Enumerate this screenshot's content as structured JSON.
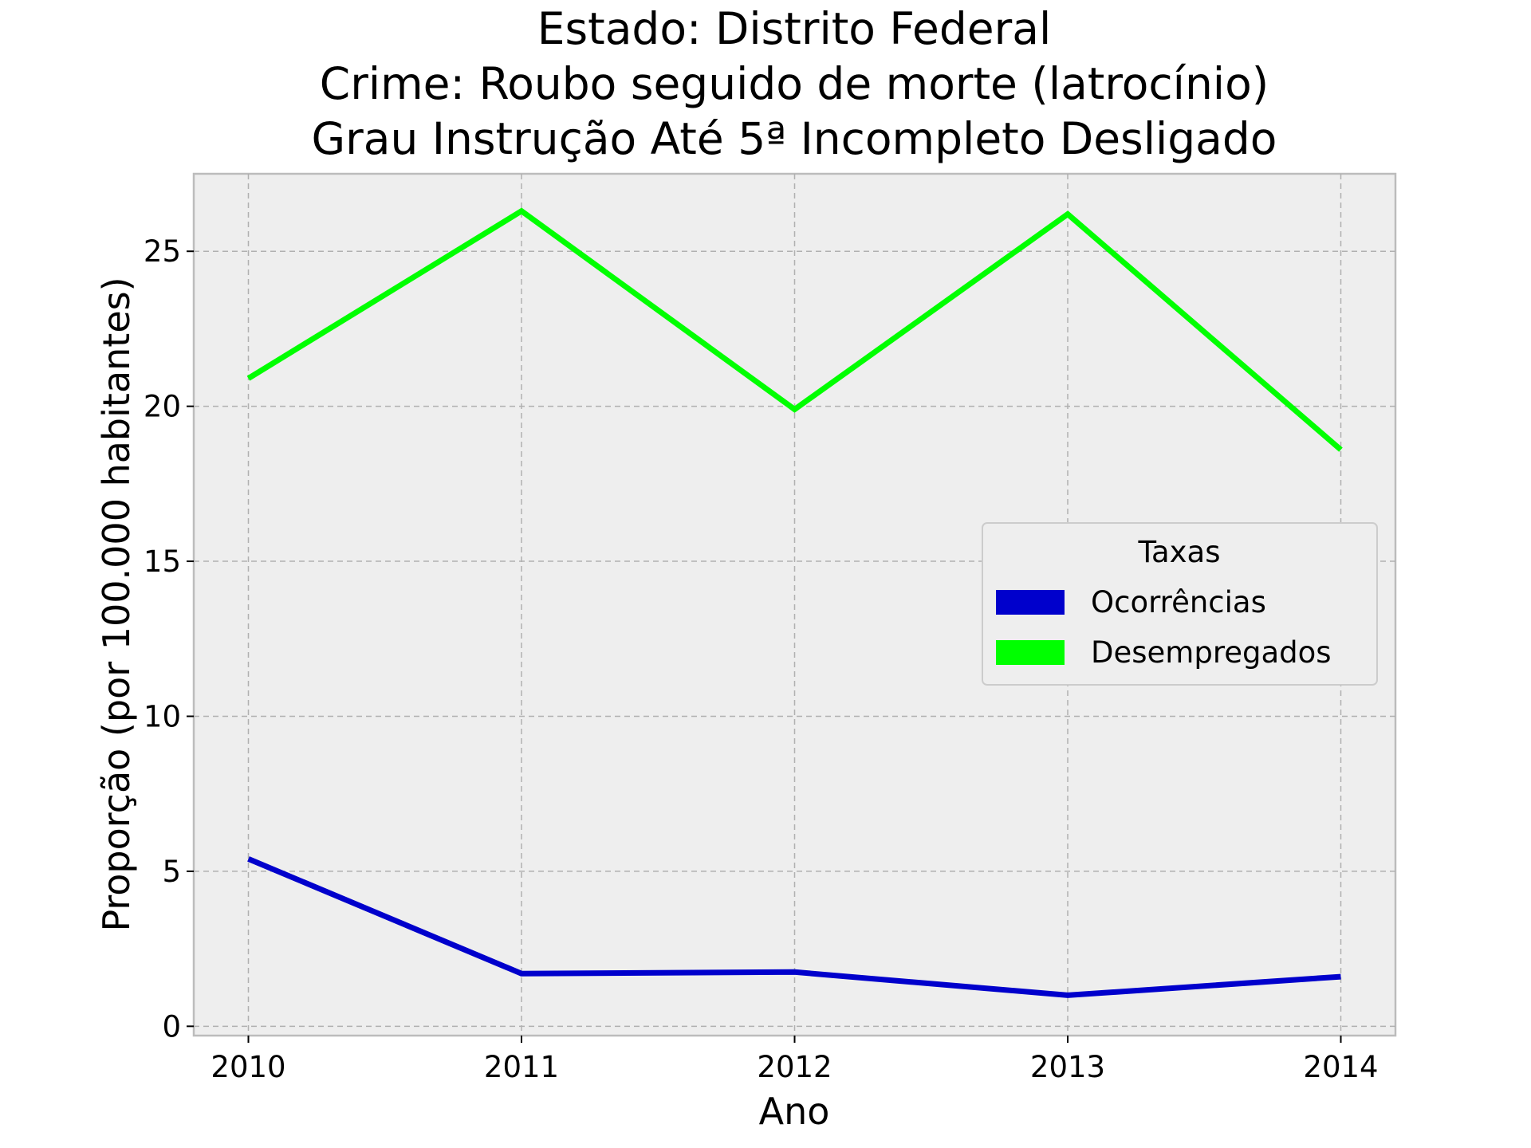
{
  "chart_data": {
    "type": "line",
    "title": [
      "Estado: Distrito Federal",
      "Crime: Roubo seguido de morte (latrocínio)",
      "Grau Instrução  Até 5ª Incompleto   Desligado"
    ],
    "xlabel": "Ano",
    "ylabel": "Proporção (por 100.000 habitantes)",
    "x": [
      2010,
      2011,
      2012,
      2013,
      2014
    ],
    "x_tick_labels": [
      "2010",
      "2011",
      "2012",
      "2013",
      "2014"
    ],
    "xlim": [
      2009.8,
      2014.2
    ],
    "ylim": [
      -0.3,
      27.5
    ],
    "y_ticks": [
      0,
      5,
      10,
      15,
      20,
      25
    ],
    "grid": true,
    "legend_title": "Taxas",
    "legend_position": "center-right",
    "series": [
      {
        "name": "Ocorrências",
        "color": "#0000cc",
        "values": [
          5.4,
          1.7,
          1.75,
          1.0,
          1.6
        ]
      },
      {
        "name": "Desempregados",
        "color": "#00ff00",
        "values": [
          20.9,
          26.3,
          19.9,
          26.2,
          18.6
        ]
      }
    ]
  }
}
